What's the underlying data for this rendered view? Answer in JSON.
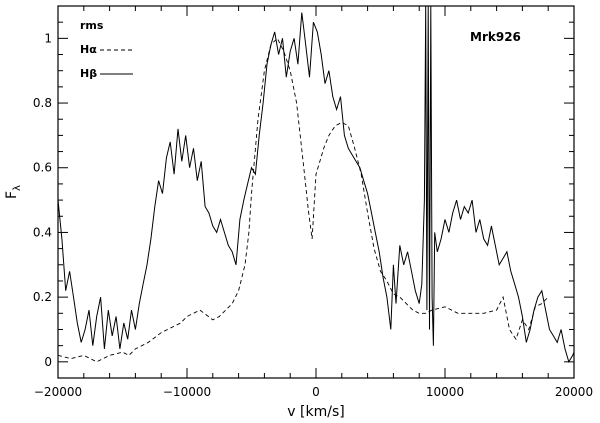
{
  "chart_data": {
    "type": "line",
    "xlabel": "v [km/s]",
    "ylabel_main": "F",
    "ylabel_sub": "λ",
    "xlim": [
      -20000,
      20000
    ],
    "ylim": [
      -0.05,
      1.1
    ],
    "x_ticks": [
      -20000,
      -10000,
      0,
      10000,
      20000
    ],
    "x_tick_labels": [
      "−20000",
      "−10000",
      "0",
      "10000",
      "20000"
    ],
    "y_ticks": [
      0,
      0.2,
      0.4,
      0.6,
      0.8,
      1
    ],
    "y_tick_labels": [
      "0",
      "0.2",
      "0.4",
      "0.6",
      "0.8",
      "1"
    ],
    "grid": false,
    "object_label": "Mrk926",
    "legend": {
      "title": "rms",
      "placement": "top-left",
      "entries": [
        {
          "label": "Hα",
          "style": "dashed"
        },
        {
          "label": "Hβ",
          "style": "solid"
        }
      ]
    },
    "series": [
      {
        "name": "Hα",
        "style": "dashed",
        "x": [
          -20000,
          -19000,
          -18000,
          -17000,
          -16000,
          -15000,
          -14500,
          -14000,
          -13000,
          -12000,
          -11500,
          -11000,
          -10500,
          -10000,
          -9000,
          -8000,
          -7500,
          -7000,
          -6500,
          -6000,
          -5500,
          -5200,
          -5000,
          -4500,
          -4000,
          -3500,
          -3000,
          -2500,
          -2000,
          -1500,
          -1000,
          -600,
          -300,
          0,
          300,
          600,
          1000,
          1500,
          2000,
          2500,
          3000,
          3500,
          4000,
          4500,
          5000,
          5500,
          6000,
          6500,
          7000,
          7500,
          8000,
          8500,
          9000,
          10000,
          11000,
          12000,
          13000,
          14000,
          14500,
          15000,
          15500,
          16000,
          16500,
          17000,
          17500,
          18000
        ],
        "y": [
          0.02,
          0.01,
          0.02,
          0.0,
          0.02,
          0.03,
          0.02,
          0.04,
          0.06,
          0.09,
          0.1,
          0.11,
          0.12,
          0.14,
          0.16,
          0.13,
          0.14,
          0.16,
          0.18,
          0.22,
          0.3,
          0.4,
          0.52,
          0.75,
          0.9,
          0.98,
          1.0,
          0.96,
          0.9,
          0.8,
          0.62,
          0.47,
          0.38,
          0.58,
          0.62,
          0.66,
          0.7,
          0.73,
          0.74,
          0.73,
          0.66,
          0.58,
          0.46,
          0.35,
          0.28,
          0.25,
          0.21,
          0.2,
          0.18,
          0.16,
          0.15,
          0.15,
          0.16,
          0.17,
          0.15,
          0.15,
          0.15,
          0.16,
          0.2,
          0.1,
          0.07,
          0.13,
          0.1,
          0.17,
          0.18,
          0.2
        ]
      },
      {
        "name": "Hβ",
        "style": "solid",
        "x": [
          -20000,
          -19700,
          -19400,
          -19100,
          -18800,
          -18500,
          -18200,
          -17900,
          -17600,
          -17300,
          -17000,
          -16700,
          -16400,
          -16100,
          -15800,
          -15500,
          -15200,
          -14900,
          -14600,
          -14300,
          -14000,
          -13700,
          -13400,
          -13100,
          -12800,
          -12500,
          -12200,
          -11900,
          -11600,
          -11300,
          -11000,
          -10700,
          -10400,
          -10100,
          -9800,
          -9500,
          -9200,
          -8900,
          -8600,
          -8300,
          -8000,
          -7700,
          -7400,
          -7100,
          -6800,
          -6500,
          -6200,
          -5900,
          -5600,
          -5300,
          -5000,
          -4700,
          -4400,
          -4100,
          -3800,
          -3500,
          -3200,
          -2900,
          -2600,
          -2300,
          -2000,
          -1700,
          -1400,
          -1100,
          -800,
          -500,
          -200,
          100,
          400,
          700,
          1000,
          1300,
          1600,
          1900,
          2200,
          2500,
          2800,
          3100,
          3400,
          3700,
          4000,
          4300,
          4600,
          4900,
          5200,
          5500,
          5800,
          6000,
          6200,
          6500,
          6800,
          7100,
          7400,
          7700,
          8000,
          8200,
          8400,
          8500,
          8600,
          8700,
          8800,
          8900,
          9000,
          9100,
          9200,
          9400,
          9700,
          10000,
          10300,
          10600,
          10900,
          11200,
          11500,
          11800,
          12100,
          12400,
          12700,
          13000,
          13300,
          13600,
          13900,
          14200,
          14500,
          14800,
          15100,
          15400,
          15700,
          16000,
          16300,
          16600,
          16900,
          17200,
          17500,
          17800,
          18100,
          18400,
          18700,
          19000,
          19300,
          19600,
          19900,
          20000
        ],
        "y": [
          0.5,
          0.38,
          0.22,
          0.28,
          0.2,
          0.12,
          0.06,
          0.1,
          0.16,
          0.05,
          0.14,
          0.2,
          0.04,
          0.16,
          0.08,
          0.14,
          0.04,
          0.12,
          0.07,
          0.16,
          0.1,
          0.18,
          0.24,
          0.3,
          0.38,
          0.48,
          0.56,
          0.52,
          0.63,
          0.68,
          0.58,
          0.72,
          0.62,
          0.7,
          0.6,
          0.66,
          0.56,
          0.62,
          0.48,
          0.46,
          0.42,
          0.4,
          0.44,
          0.4,
          0.36,
          0.34,
          0.3,
          0.44,
          0.5,
          0.55,
          0.6,
          0.58,
          0.7,
          0.8,
          0.92,
          0.98,
          1.02,
          0.95,
          1.0,
          0.88,
          0.96,
          1.0,
          0.92,
          1.08,
          0.98,
          0.88,
          1.05,
          1.02,
          0.95,
          0.86,
          0.9,
          0.82,
          0.78,
          0.82,
          0.7,
          0.66,
          0.64,
          0.62,
          0.6,
          0.56,
          0.52,
          0.46,
          0.4,
          0.34,
          0.26,
          0.2,
          0.1,
          0.3,
          0.18,
          0.36,
          0.3,
          0.34,
          0.28,
          0.22,
          0.18,
          0.24,
          0.5,
          1.1,
          0.16,
          1.1,
          0.1,
          1.1,
          0.2,
          0.05,
          0.4,
          0.34,
          0.38,
          0.44,
          0.4,
          0.46,
          0.5,
          0.44,
          0.48,
          0.46,
          0.5,
          0.4,
          0.44,
          0.38,
          0.36,
          0.42,
          0.36,
          0.3,
          0.32,
          0.34,
          0.28,
          0.24,
          0.2,
          0.14,
          0.06,
          0.1,
          0.16,
          0.2,
          0.22,
          0.16,
          0.1,
          0.08,
          0.06,
          0.1,
          0.04,
          0.0,
          0.02,
          0.03
        ]
      }
    ]
  }
}
